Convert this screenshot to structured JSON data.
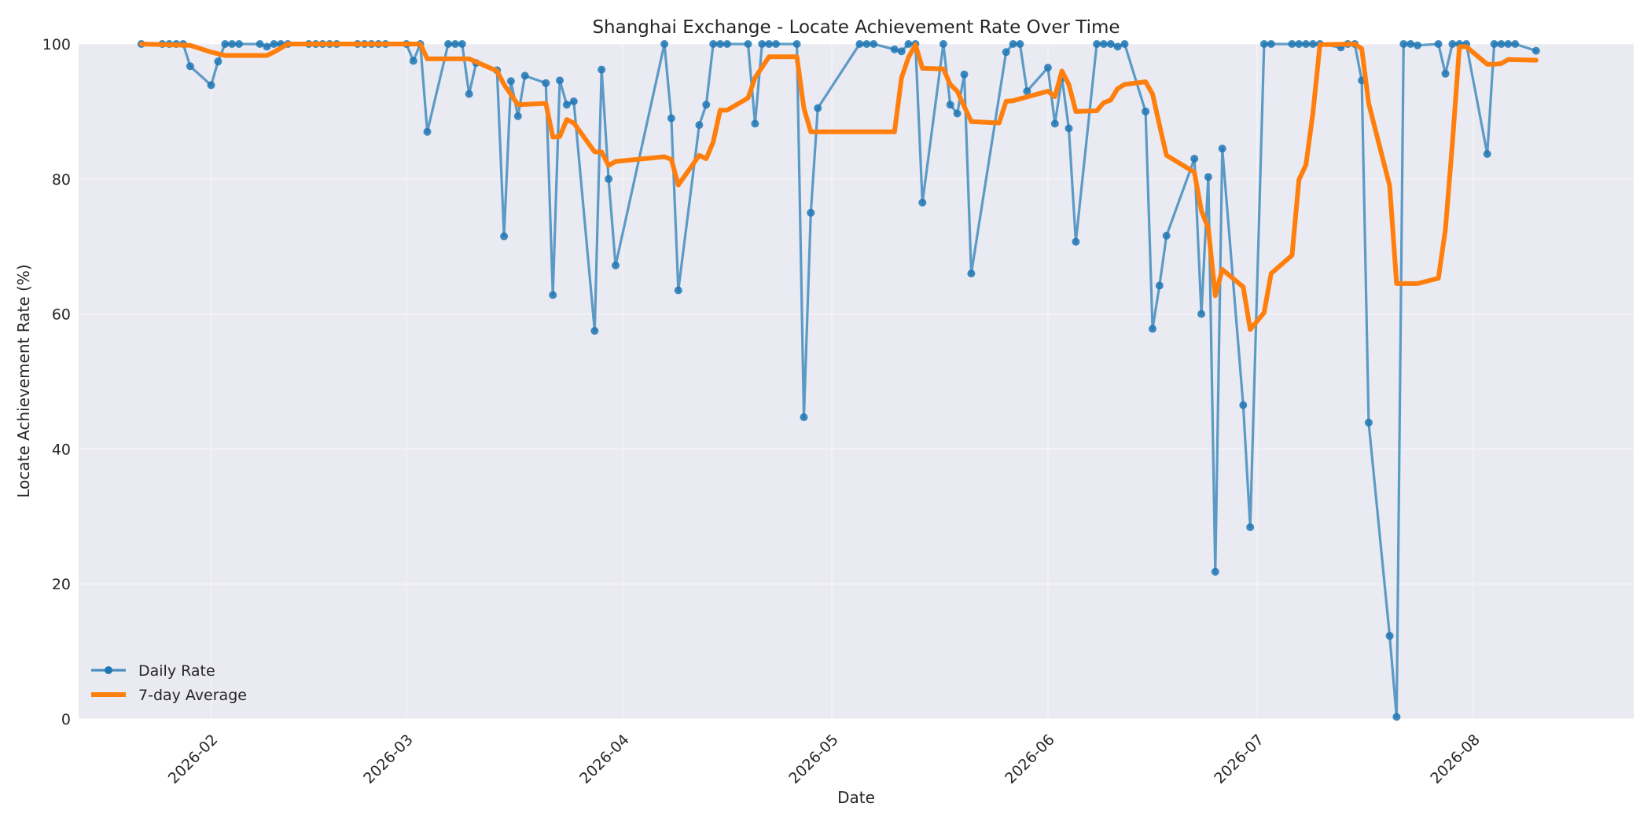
{
  "chart_data": {
    "type": "line",
    "title": "Shanghai Exchange - Locate Achievement Rate Over Time",
    "xlabel": "Date",
    "ylabel": "Locate Achievement Rate (%)",
    "x_range": [
      "2026-01-13",
      "2026-08-24"
    ],
    "ylim": [
      0,
      100
    ],
    "yticks": [
      0,
      20,
      40,
      60,
      80,
      100
    ],
    "xticks": [
      {
        "date": "2026-02-01",
        "label": "2026-02"
      },
      {
        "date": "2026-03-01",
        "label": "2026-03"
      },
      {
        "date": "2026-04-01",
        "label": "2026-04"
      },
      {
        "date": "2026-05-01",
        "label": "2026-05"
      },
      {
        "date": "2026-06-01",
        "label": "2026-06"
      },
      {
        "date": "2026-07-01",
        "label": "2026-07"
      },
      {
        "date": "2026-08-01",
        "label": "2026-08"
      }
    ],
    "grid": true,
    "legend_position": "bottom-left",
    "background": "#eaeaf2",
    "series": [
      {
        "name": "Daily Rate",
        "color": "#1f77b4",
        "style": "line-with-markers",
        "points": [
          [
            "2026-01-22",
            100
          ],
          [
            "2026-01-25",
            100
          ],
          [
            "2026-01-26",
            100
          ],
          [
            "2026-01-27",
            100
          ],
          [
            "2026-01-28",
            100
          ],
          [
            "2026-01-29",
            96.7
          ],
          [
            "2026-02-01",
            93.9
          ],
          [
            "2026-02-02",
            97.4
          ],
          [
            "2026-02-03",
            100
          ],
          [
            "2026-02-04",
            100
          ],
          [
            "2026-02-05",
            100
          ],
          [
            "2026-02-08",
            100
          ],
          [
            "2026-02-09",
            99.6
          ],
          [
            "2026-02-10",
            100
          ],
          [
            "2026-02-11",
            100
          ],
          [
            "2026-02-12",
            100
          ],
          [
            "2026-02-15",
            100
          ],
          [
            "2026-02-16",
            100
          ],
          [
            "2026-02-17",
            100
          ],
          [
            "2026-02-18",
            100
          ],
          [
            "2026-02-19",
            100
          ],
          [
            "2026-02-22",
            100
          ],
          [
            "2026-02-23",
            100
          ],
          [
            "2026-02-24",
            100
          ],
          [
            "2026-02-25",
            100
          ],
          [
            "2026-02-26",
            100
          ],
          [
            "2026-03-01",
            100
          ],
          [
            "2026-03-02",
            97.5
          ],
          [
            "2026-03-03",
            100
          ],
          [
            "2026-03-04",
            87
          ],
          [
            "2026-03-07",
            100
          ],
          [
            "2026-03-08",
            100
          ],
          [
            "2026-03-09",
            100
          ],
          [
            "2026-03-10",
            92.6
          ],
          [
            "2026-03-11",
            97.2
          ],
          [
            "2026-03-14",
            96.1
          ],
          [
            "2026-03-15",
            71.5
          ],
          [
            "2026-03-16",
            94.5
          ],
          [
            "2026-03-17",
            89.3
          ],
          [
            "2026-03-18",
            95.3
          ],
          [
            "2026-03-21",
            94.2
          ],
          [
            "2026-03-22",
            62.8
          ],
          [
            "2026-03-23",
            94.6
          ],
          [
            "2026-03-24",
            91
          ],
          [
            "2026-03-25",
            91.5
          ],
          [
            "2026-03-28",
            57.5
          ],
          [
            "2026-03-29",
            96.2
          ],
          [
            "2026-03-30",
            80
          ],
          [
            "2026-03-31",
            67.2
          ],
          [
            "2026-04-07",
            100
          ],
          [
            "2026-04-08",
            89
          ],
          [
            "2026-04-09",
            63.5
          ],
          [
            "2026-04-12",
            88
          ],
          [
            "2026-04-13",
            91
          ],
          [
            "2026-04-14",
            100
          ],
          [
            "2026-04-15",
            100
          ],
          [
            "2026-04-16",
            100
          ],
          [
            "2026-04-19",
            100
          ],
          [
            "2026-04-20",
            88.2
          ],
          [
            "2026-04-21",
            100
          ],
          [
            "2026-04-22",
            100
          ],
          [
            "2026-04-23",
            100
          ],
          [
            "2026-04-26",
            100
          ],
          [
            "2026-04-27",
            44.7
          ],
          [
            "2026-04-28",
            75
          ],
          [
            "2026-04-29",
            90.5
          ],
          [
            "2026-05-05",
            100
          ],
          [
            "2026-05-06",
            100
          ],
          [
            "2026-05-07",
            100
          ],
          [
            "2026-05-10",
            99.2
          ],
          [
            "2026-05-11",
            98.9
          ],
          [
            "2026-05-12",
            100
          ],
          [
            "2026-05-13",
            100
          ],
          [
            "2026-05-14",
            76.5
          ],
          [
            "2026-05-17",
            100
          ],
          [
            "2026-05-18",
            91
          ],
          [
            "2026-05-19",
            89.7
          ],
          [
            "2026-05-20",
            95.5
          ],
          [
            "2026-05-21",
            66
          ],
          [
            "2026-05-26",
            98.8
          ],
          [
            "2026-05-27",
            100
          ],
          [
            "2026-05-28",
            100
          ],
          [
            "2026-05-29",
            93
          ],
          [
            "2026-06-01",
            96.5
          ],
          [
            "2026-06-02",
            88.2
          ],
          [
            "2026-06-03",
            95
          ],
          [
            "2026-06-04",
            87.5
          ],
          [
            "2026-06-05",
            70.7
          ],
          [
            "2026-06-08",
            100
          ],
          [
            "2026-06-09",
            100
          ],
          [
            "2026-06-10",
            100
          ],
          [
            "2026-06-11",
            99.6
          ],
          [
            "2026-06-12",
            100
          ],
          [
            "2026-06-15",
            90
          ],
          [
            "2026-06-16",
            57.8
          ],
          [
            "2026-06-17",
            64.2
          ],
          [
            "2026-06-18",
            71.6
          ],
          [
            "2026-06-22",
            83
          ],
          [
            "2026-06-23",
            60
          ],
          [
            "2026-06-24",
            80.3
          ],
          [
            "2026-06-25",
            21.8
          ],
          [
            "2026-06-26",
            84.5
          ],
          [
            "2026-06-29",
            46.5
          ],
          [
            "2026-06-30",
            28.4
          ],
          [
            "2026-07-02",
            100
          ],
          [
            "2026-07-03",
            100
          ],
          [
            "2026-07-06",
            100
          ],
          [
            "2026-07-07",
            100
          ],
          [
            "2026-07-08",
            100
          ],
          [
            "2026-07-09",
            100
          ],
          [
            "2026-07-10",
            100
          ],
          [
            "2026-07-13",
            99.5
          ],
          [
            "2026-07-14",
            100
          ],
          [
            "2026-07-15",
            100
          ],
          [
            "2026-07-16",
            94.6
          ],
          [
            "2026-07-17",
            43.9
          ],
          [
            "2026-07-20",
            12.3
          ],
          [
            "2026-07-21",
            0.3
          ],
          [
            "2026-07-22",
            100
          ],
          [
            "2026-07-23",
            100
          ],
          [
            "2026-07-24",
            99.8
          ],
          [
            "2026-07-27",
            100
          ],
          [
            "2026-07-28",
            95.6
          ],
          [
            "2026-07-29",
            100
          ],
          [
            "2026-07-30",
            100
          ],
          [
            "2026-07-31",
            100
          ],
          [
            "2026-08-03",
            83.7
          ],
          [
            "2026-08-04",
            100
          ],
          [
            "2026-08-05",
            100
          ],
          [
            "2026-08-06",
            100
          ],
          [
            "2026-08-07",
            100
          ],
          [
            "2026-08-10",
            99
          ]
        ]
      },
      {
        "name": "7-day Average",
        "color": "#ff7f0e",
        "style": "thick-line",
        "points": [
          [
            "2026-01-22",
            100
          ],
          [
            "2026-01-29",
            99.8
          ],
          [
            "2026-02-01",
            98.8
          ],
          [
            "2026-02-03",
            98.3
          ],
          [
            "2026-02-09",
            98.3
          ],
          [
            "2026-02-10",
            98.8
          ],
          [
            "2026-02-12",
            100
          ],
          [
            "2026-03-03",
            100
          ],
          [
            "2026-03-04",
            97.8
          ],
          [
            "2026-03-10",
            97.8
          ],
          [
            "2026-03-14",
            96
          ],
          [
            "2026-03-15",
            94
          ],
          [
            "2026-03-17",
            91
          ],
          [
            "2026-03-21",
            91.2
          ],
          [
            "2026-03-22",
            86.2
          ],
          [
            "2026-03-23",
            86.3
          ],
          [
            "2026-03-24",
            88.8
          ],
          [
            "2026-03-25",
            88.3
          ],
          [
            "2026-03-28",
            84
          ],
          [
            "2026-03-29",
            84
          ],
          [
            "2026-03-30",
            82
          ],
          [
            "2026-03-31",
            82.6
          ],
          [
            "2026-04-07",
            83.3
          ],
          [
            "2026-04-08",
            82.9
          ],
          [
            "2026-04-09",
            79.1
          ],
          [
            "2026-04-12",
            83.5
          ],
          [
            "2026-04-13",
            83
          ],
          [
            "2026-04-14",
            85.5
          ],
          [
            "2026-04-15",
            90.2
          ],
          [
            "2026-04-16",
            90.2
          ],
          [
            "2026-04-19",
            92
          ],
          [
            "2026-04-20",
            95
          ],
          [
            "2026-04-22",
            98.1
          ],
          [
            "2026-04-26",
            98.1
          ],
          [
            "2026-04-27",
            90.5
          ],
          [
            "2026-04-28",
            87
          ],
          [
            "2026-05-07",
            87
          ],
          [
            "2026-05-10",
            87
          ],
          [
            "2026-05-11",
            95
          ],
          [
            "2026-05-12",
            98
          ],
          [
            "2026-05-13",
            99.9
          ],
          [
            "2026-05-14",
            96.4
          ],
          [
            "2026-05-17",
            96.3
          ],
          [
            "2026-05-18",
            94
          ],
          [
            "2026-05-19",
            93
          ],
          [
            "2026-05-21",
            88.5
          ],
          [
            "2026-05-25",
            88.3
          ],
          [
            "2026-05-26",
            91.5
          ],
          [
            "2026-05-27",
            91.6
          ],
          [
            "2026-06-01",
            93
          ],
          [
            "2026-06-02",
            92.2
          ],
          [
            "2026-06-03",
            96
          ],
          [
            "2026-06-04",
            94
          ],
          [
            "2026-06-05",
            90
          ],
          [
            "2026-06-08",
            90.1
          ],
          [
            "2026-06-09",
            91.3
          ],
          [
            "2026-06-10",
            91.7
          ],
          [
            "2026-06-11",
            93.4
          ],
          [
            "2026-06-12",
            94
          ],
          [
            "2026-06-15",
            94.4
          ],
          [
            "2026-06-16",
            92.6
          ],
          [
            "2026-06-17",
            88
          ],
          [
            "2026-06-18",
            83.5
          ],
          [
            "2026-06-22",
            81
          ],
          [
            "2026-06-23",
            75.3
          ],
          [
            "2026-06-24",
            72.7
          ],
          [
            "2026-06-25",
            62.7
          ],
          [
            "2026-06-26",
            66.6
          ],
          [
            "2026-06-29",
            64
          ],
          [
            "2026-06-30",
            57.7
          ],
          [
            "2026-07-02",
            60.2
          ],
          [
            "2026-07-03",
            66
          ],
          [
            "2026-07-06",
            68.7
          ],
          [
            "2026-07-07",
            79.9
          ],
          [
            "2026-07-08",
            82.1
          ],
          [
            "2026-07-09",
            89.8
          ],
          [
            "2026-07-10",
            99.9
          ],
          [
            "2026-07-15",
            100
          ],
          [
            "2026-07-16",
            99.3
          ],
          [
            "2026-07-17",
            91.2
          ],
          [
            "2026-07-20",
            79
          ],
          [
            "2026-07-21",
            64.5
          ],
          [
            "2026-07-24",
            64.5
          ],
          [
            "2026-07-27",
            65.3
          ],
          [
            "2026-07-28",
            72.5
          ],
          [
            "2026-07-29",
            85.3
          ],
          [
            "2026-07-30",
            99.6
          ],
          [
            "2026-07-31",
            99.6
          ],
          [
            "2026-08-03",
            97
          ],
          [
            "2026-08-04",
            97
          ],
          [
            "2026-08-05",
            97.1
          ],
          [
            "2026-08-06",
            97.7
          ],
          [
            "2026-08-10",
            97.6
          ]
        ]
      }
    ]
  }
}
